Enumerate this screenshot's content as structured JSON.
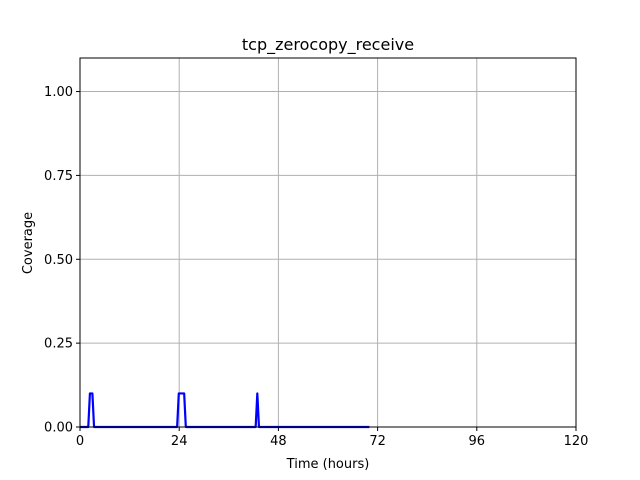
{
  "chart_data": {
    "type": "line",
    "title": "tcp_zerocopy_receive",
    "xlabel": "Time (hours)",
    "ylabel": "Coverage",
    "xlim": [
      0,
      120
    ],
    "ylim": [
      0,
      1.1
    ],
    "grid": true,
    "x_ticks": [
      0,
      24,
      48,
      72,
      96,
      120
    ],
    "x_tick_labels": [
      "0",
      "24",
      "48",
      "72",
      "96",
      "120"
    ],
    "y_ticks": [
      0,
      0.25,
      0.5,
      0.75,
      1.0
    ],
    "y_tick_labels": [
      "0.00",
      "0.25",
      "0.50",
      "0.75",
      "1.00"
    ],
    "series": [
      {
        "color": "#0000ff",
        "x": [
          0,
          2.0,
          2.4,
          3.0,
          3.4,
          23.5,
          23.9,
          25.2,
          25.6,
          42.5,
          42.9,
          43.3,
          70
        ],
        "y": [
          0,
          0,
          0.1,
          0.1,
          0,
          0,
          0.1,
          0.1,
          0,
          0,
          0.1,
          0,
          0
        ]
      }
    ]
  }
}
